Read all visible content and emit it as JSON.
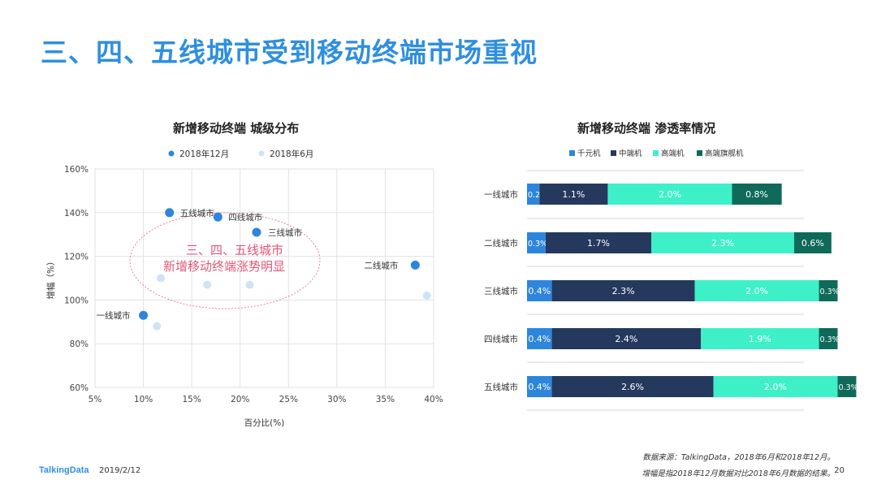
{
  "page": {
    "title": "三、四、五线城市受到移动终端市场重视",
    "brand": "TalkingData",
    "date": "2019/2/12",
    "page_number": "20",
    "source_line1": "数据来源：TalkingData，2018年6月和2018年12月。",
    "source_line2": "增幅是指2018年12月数据对比2018年6月数据的结果。"
  },
  "colors": {
    "title": "#2f8fe0",
    "dec2018": "#2d86dc",
    "jun2018": "#cfe3f6",
    "annotation": "#e0577a",
    "seg_low": "#2d86dc",
    "seg_mid": "#25395f",
    "seg_high": "#3ef0c8",
    "seg_flagship": "#0f6a5a"
  },
  "chart_data": [
    {
      "type": "scatter",
      "title": "新增移动终端  城级分布",
      "xlabel": "百分比(%)",
      "ylabel": "增幅（%）",
      "xlim": [
        5,
        40
      ],
      "ylim": [
        60,
        160
      ],
      "x_ticks": [
        "5%",
        "10%",
        "15%",
        "20%",
        "25%",
        "30%",
        "35%",
        "40%"
      ],
      "y_ticks": [
        "60%",
        "80%",
        "100%",
        "120%",
        "140%",
        "160%"
      ],
      "grid": true,
      "legend_position": "top",
      "annotation": [
        "三、四、五线城市",
        "新增移动终端涨势明显"
      ],
      "series": [
        {
          "name": "2018年12月",
          "points": [
            {
              "label": "一线城市",
              "x": 10.0,
              "y": 93
            },
            {
              "label": "二线城市",
              "x": 38.1,
              "y": 116
            },
            {
              "label": "三线城市",
              "x": 21.7,
              "y": 131
            },
            {
              "label": "四线城市",
              "x": 17.7,
              "y": 138
            },
            {
              "label": "五线城市",
              "x": 12.7,
              "y": 140
            }
          ]
        },
        {
          "name": "2018年6月",
          "points": [
            {
              "x": 11.4,
              "y": 88
            },
            {
              "x": 39.3,
              "y": 102
            },
            {
              "x": 21.0,
              "y": 107
            },
            {
              "x": 16.6,
              "y": 107
            },
            {
              "x": 11.8,
              "y": 110
            }
          ]
        }
      ]
    },
    {
      "type": "bar",
      "orientation": "horizontal",
      "stacked": true,
      "title": "新增移动终端  渗透率情况",
      "legend_position": "top",
      "categories": [
        "一线城市",
        "二线城市",
        "三线城市",
        "四线城市",
        "五线城市"
      ],
      "series": [
        {
          "name": "千元机",
          "values": [
            0.2,
            0.3,
            0.4,
            0.4,
            0.4
          ],
          "labels": [
            "0.2%",
            "0.3%",
            "0.4%",
            "0.4%",
            "0.4%"
          ]
        },
        {
          "name": "中端机",
          "values": [
            1.1,
            1.7,
            2.3,
            2.4,
            2.6
          ],
          "labels": [
            "1.1%",
            "1.7%",
            "2.3%",
            "2.4%",
            "2.6%"
          ]
        },
        {
          "name": "高端机",
          "values": [
            2.0,
            2.3,
            2.0,
            1.9,
            2.0
          ],
          "labels": [
            "2.0%",
            "2.3%",
            "2.0%",
            "1.9%",
            "2.0%"
          ]
        },
        {
          "name": "高端旗舰机",
          "values": [
            0.8,
            0.6,
            0.3,
            0.3,
            0.3
          ],
          "labels": [
            "0.8%",
            "0.6%",
            "0.3%",
            "0.3%",
            "0.3%"
          ]
        }
      ]
    }
  ]
}
